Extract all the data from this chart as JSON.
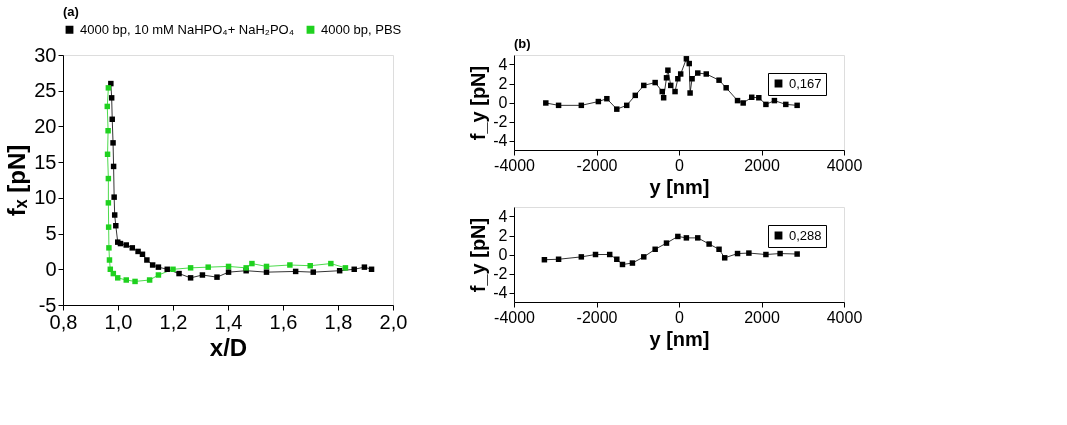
{
  "chart_data": [
    {
      "type": "line",
      "title": "(a)",
      "xlabel": "x/D",
      "ylabel": "fₓ [pN]",
      "marker": "square",
      "line_style": "solid",
      "grid": false,
      "legend": "top",
      "xlim": [
        0.8,
        2.0
      ],
      "ylim": [
        -5,
        30
      ],
      "xticks": [
        {
          "value": 0.8,
          "label": "0,8"
        },
        {
          "value": 1.0,
          "label": "1,0"
        },
        {
          "value": 1.2,
          "label": "1,2"
        },
        {
          "value": 1.4,
          "label": "1,4"
        },
        {
          "value": 1.6,
          "label": "1,6"
        },
        {
          "value": 1.8,
          "label": "1,8"
        },
        {
          "value": 2.0,
          "label": "2,0"
        }
      ],
      "yticks": [
        -5,
        0,
        5,
        10,
        15,
        20,
        25,
        30
      ],
      "series": [
        {
          "name": "4000 bp, 10 mM NaHPO₄+ NaH₂PO₄",
          "color": "#000000",
          "x": [
            0.974,
            0.977,
            0.979,
            0.982,
            0.984,
            0.986,
            0.988,
            0.992,
            0.999,
            1.009,
            1.03,
            1.052,
            1.073,
            1.089,
            1.105,
            1.126,
            1.147,
            1.179,
            1.222,
            1.264,
            1.307,
            1.36,
            1.402,
            1.466,
            1.54,
            1.646,
            1.71,
            1.806,
            1.859,
            1.896,
            1.922
          ],
          "values": [
            26,
            24,
            21,
            17.7,
            14.4,
            10.1,
            7.6,
            6.1,
            3.8,
            3.6,
            3.4,
            3.0,
            2.5,
            2.1,
            1.3,
            0.6,
            0.3,
            0,
            -0.6,
            -1.2,
            -0.8,
            -1.1,
            -0.4,
            -0.2,
            -0.4,
            -0.3,
            -0.4,
            -0.2,
            0,
            0.3,
            0
          ]
        },
        {
          "name": "4000 bp, PBS",
          "color": "#1fd11f",
          "x": [
            0.965,
            0.961,
            0.964,
            0.962,
            0.965,
            0.965,
            0.966,
            0.967,
            0.969,
            0.972,
            0.983,
            0.999,
            1.03,
            1.062,
            1.115,
            1.147,
            1.2,
            1.264,
            1.328,
            1.402,
            1.466,
            1.487,
            1.54,
            1.625,
            1.699,
            1.774,
            1.827
          ],
          "values": [
            25.4,
            22.8,
            19.4,
            16.1,
            12.7,
            9.3,
            5.9,
            3.0,
            1.3,
            0,
            -0.6,
            -1.2,
            -1.5,
            -1.7,
            -1.5,
            -0.8,
            0,
            0.2,
            0.3,
            0.4,
            0.2,
            0.8,
            0.4,
            0.6,
            0.5,
            0.8,
            0.2
          ]
        }
      ]
    },
    {
      "type": "line",
      "title": "(b)",
      "xlabel": "y [nm]",
      "ylabel": "f_y [pN]",
      "marker": "square",
      "line_style": "solid",
      "grid": false,
      "legend": "top right",
      "xlim": [
        -4000,
        4000
      ],
      "ylim": [
        -5,
        5
      ],
      "xticks": [
        -4000,
        -2000,
        0,
        2000,
        4000
      ],
      "yticks": [
        -4,
        -2,
        0,
        2,
        4
      ],
      "series": [
        {
          "name": "0,167",
          "color": "#000000",
          "x": [
            -3229,
            -2919,
            -2368,
            -1955,
            -1749,
            -1508,
            -1267,
            -1060,
            -854,
            -578,
            -406,
            -372,
            -303,
            -269,
            -200,
            -96,
            -28,
            41,
            179,
            248,
            269,
            317,
            455,
            661,
            971,
            1143,
            1419,
            1556,
            1763,
            1935,
            2107,
            2313,
            2589,
            2864
          ],
          "values": [
            -0.05,
            -0.3,
            -0.3,
            0.1,
            0.4,
            -0.7,
            -0.3,
            0.75,
            1.8,
            2.1,
            1.15,
            0.5,
            2.6,
            3.4,
            1.8,
            1.15,
            2.5,
            3.0,
            4.6,
            4.1,
            1.0,
            2.5,
            3.1,
            3.0,
            2.35,
            1.55,
            0.2,
            -0.05,
            0.55,
            0.5,
            -0.2,
            0.2,
            -0.2,
            -0.3
          ]
        }
      ]
    },
    {
      "type": "line",
      "xlabel": "y [nm]",
      "ylabel": "f_y [pN]",
      "marker": "square",
      "line_style": "solid",
      "grid": false,
      "legend": "top right",
      "xlim": [
        -4000,
        4000
      ],
      "ylim": [
        -5,
        5
      ],
      "xticks": [
        -4000,
        -2000,
        0,
        2000,
        4000
      ],
      "yticks": [
        -4,
        -2,
        0,
        2,
        4
      ],
      "series": [
        {
          "name": "0,288",
          "color": "#000000",
          "x": [
            -3263,
            -2919,
            -2368,
            -2024,
            -1680,
            -1508,
            -1370,
            -1129,
            -854,
            -578,
            -303,
            -28,
            179,
            455,
            730,
            971,
            1108,
            1419,
            1694,
            2107,
            2451,
            2864
          ],
          "values": [
            -0.55,
            -0.5,
            -0.25,
            0,
            0,
            -0.5,
            -1.05,
            -0.9,
            -0.25,
            0.55,
            1.2,
            1.9,
            1.75,
            1.75,
            1.1,
            0.55,
            -0.35,
            0.1,
            0.15,
            0,
            0.1,
            0.05
          ]
        }
      ]
    }
  ]
}
